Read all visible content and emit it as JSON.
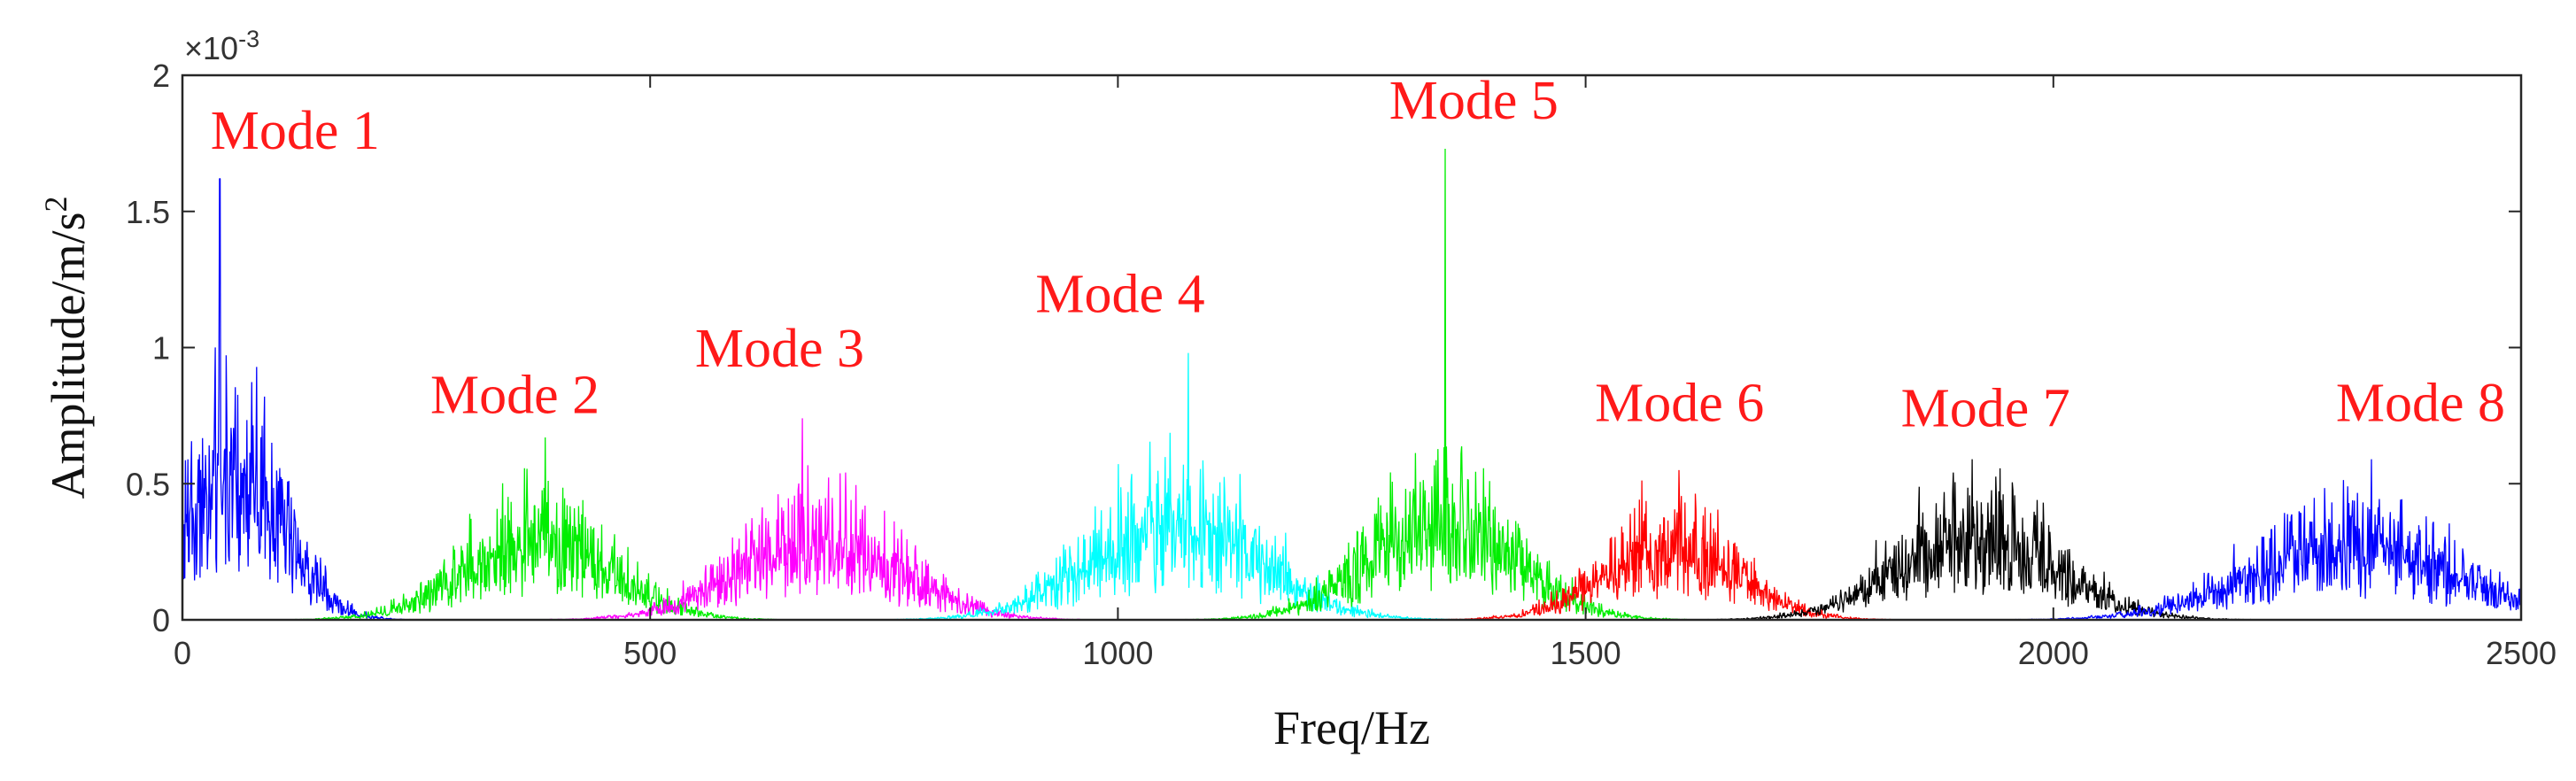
{
  "chart_data": {
    "type": "line",
    "title": "",
    "xlabel": "Freq/Hz",
    "ylabel_prefix": "Amplitude/m/s",
    "ylabel_superscript": "2",
    "y_exponent_base": "×10",
    "y_exponent_power": "-3",
    "xlim": [
      0,
      2500
    ],
    "ylim": [
      0,
      2
    ],
    "x_ticks": [
      "0",
      "500",
      "1000",
      "1500",
      "2000",
      "2500"
    ],
    "y_ticks": [
      "0",
      "0.5",
      "1",
      "1.5",
      "2"
    ],
    "grid": false,
    "series": [
      {
        "name": "Mode 1",
        "color": "#0000ff",
        "center": 55,
        "width": 75,
        "base": 0.55,
        "noise": 0.55,
        "peak": 1.62,
        "peak_x": 40,
        "lo": 0,
        "hi": 330,
        "label_x": 30,
        "label_y": 1.73
      },
      {
        "name": "Mode 2",
        "color": "#00ee00",
        "center": 380,
        "width": 110,
        "base": 0.3,
        "noise": 0.3,
        "peak": 0.67,
        "peak_x": 388,
        "lo": 120,
        "hi": 650,
        "label_x": 265,
        "label_y": 0.76
      },
      {
        "name": "Mode 3",
        "color": "#ff00ff",
        "center": 680,
        "width": 120,
        "base": 0.32,
        "noise": 0.3,
        "peak": 0.74,
        "peak_x": 663,
        "lo": 380,
        "hi": 960,
        "label_x": 548,
        "label_y": 0.93
      },
      {
        "name": "Mode 4",
        "color": "#00ffff",
        "center": 1060,
        "width": 125,
        "base": 0.38,
        "noise": 0.34,
        "peak": 0.98,
        "peak_x": 1075,
        "lo": 760,
        "hi": 1370,
        "label_x": 912,
        "label_y": 1.13
      },
      {
        "name": "Mode 5",
        "color": "#00ee00",
        "center": 1345,
        "width": 110,
        "base": 0.38,
        "noise": 0.36,
        "peak": 1.73,
        "peak_x": 1350,
        "lo": 1060,
        "hi": 1640,
        "label_x": 1290,
        "label_y": 1.84
      },
      {
        "name": "Mode 6",
        "color": "#ff0000",
        "center": 1590,
        "width": 100,
        "base": 0.3,
        "noise": 0.26,
        "peak": 0.55,
        "peak_x": 1600,
        "lo": 1330,
        "hi": 1860,
        "label_x": 1510,
        "label_y": 0.73
      },
      {
        "name": "Mode 7",
        "color": "#000000",
        "center": 1920,
        "width": 120,
        "base": 0.32,
        "noise": 0.28,
        "peak": 0.59,
        "peak_x": 1913,
        "lo": 1620,
        "hi": 2230,
        "label_x": 1837,
        "label_y": 0.71
      },
      {
        "name": "Mode 8",
        "color": "#0000ff",
        "center": 2320,
        "width": 150,
        "base": 0.3,
        "noise": 0.28,
        "peak": 0.59,
        "peak_x": 2340,
        "lo": 1950,
        "hi": 2500,
        "label_x": 2302,
        "label_y": 0.73
      }
    ]
  }
}
